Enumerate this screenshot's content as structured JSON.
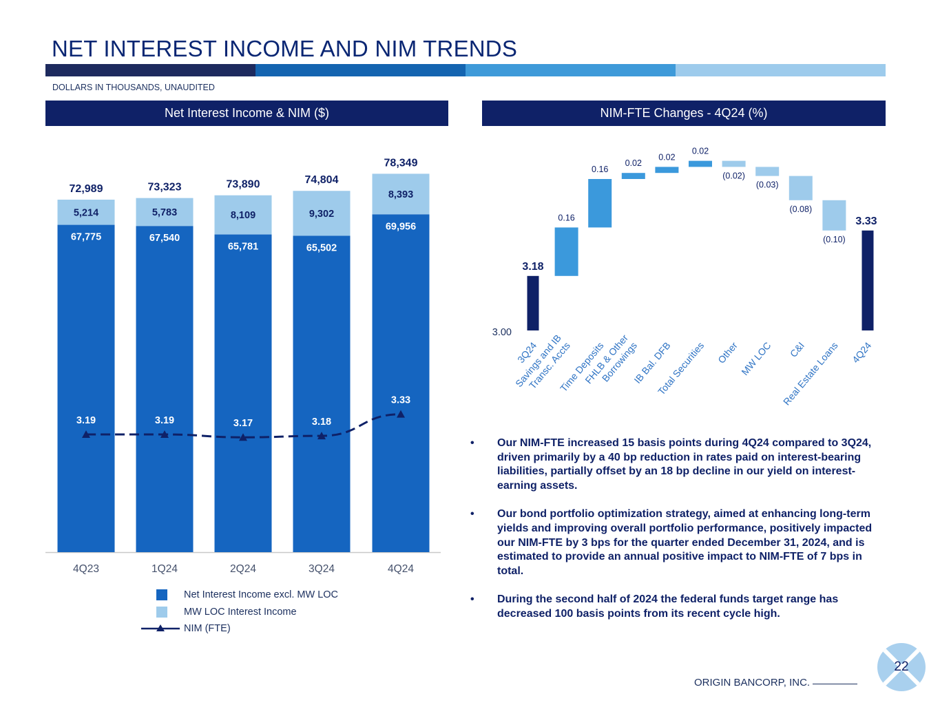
{
  "title": "NET INTEREST INCOME AND NIM TRENDS",
  "subtitle": "DOLLARS IN THOUSANDS, UNAUDITED",
  "colors": {
    "navy": "#0f2167",
    "stripe": [
      "#1d2a5e",
      "#1464b0",
      "#3e9ad9",
      "#9dcbec"
    ],
    "bar_base": "#1565c0",
    "bar_top": "#9ecbeb",
    "waterfall_up": "#3b99dc",
    "waterfall_down": "#9ecbeb",
    "waterfall_total": "#0f2167"
  },
  "left_panel": {
    "header": "Net Interest Income & NIM ($)"
  },
  "right_panel": {
    "header": "NIM-FTE Changes - 4Q24 (%)"
  },
  "legend": {
    "items": [
      {
        "label": "Net Interest Income excl. MW LOC",
        "icon": "square-swatch"
      },
      {
        "label": "MW LOC Interest Income",
        "icon": "square-swatch"
      },
      {
        "label": "NIM (FTE)",
        "icon": "line-triangle-marker"
      }
    ]
  },
  "chart_data": [
    {
      "type": "bar",
      "stacked": true,
      "title": "Net Interest Income & NIM ($)",
      "categories": [
        "4Q23",
        "1Q24",
        "2Q24",
        "3Q24",
        "4Q24"
      ],
      "series": [
        {
          "name": "Net Interest Income excl. MW LOC",
          "values": [
            67775,
            67540,
            65781,
            65502,
            69956
          ],
          "labels": [
            "67,775",
            "67,540",
            "65,781",
            "65,502",
            "69,956"
          ]
        },
        {
          "name": "MW LOC Interest Income",
          "values": [
            5214,
            5783,
            8109,
            9302,
            8393
          ],
          "labels": [
            "5,214",
            "5,783",
            "8,109",
            "9,302",
            "8,393"
          ]
        }
      ],
      "totals": [
        72989,
        73323,
        73890,
        74804,
        78349
      ],
      "total_labels": [
        "72,989",
        "73,323",
        "73,890",
        "74,804",
        "78,349"
      ],
      "line": {
        "name": "NIM (FTE)",
        "values": [
          3.19,
          3.19,
          3.17,
          3.18,
          3.33
        ],
        "labels": [
          "3.19",
          "3.19",
          "3.17",
          "3.18",
          "3.33"
        ],
        "marker": "triangle",
        "style": "dashed"
      },
      "ylim": [
        0,
        80000
      ]
    },
    {
      "type": "waterfall",
      "title": "NIM-FTE Changes - 4Q24 (%)",
      "categories": [
        "3Q24",
        "Savings and IB Transc. Accts",
        "Time Deposits",
        "FHLB & Other Borrowings",
        "IB Bal. DFB",
        "Total Securities",
        "Other",
        "MW LOC",
        "C&I",
        "Real Estate Loans",
        "4Q24"
      ],
      "category_lines": [
        [
          "3Q24"
        ],
        [
          "Savings and IB",
          "Transc. Accts"
        ],
        [
          "Time Deposits"
        ],
        [
          "FHLB & Other",
          "Borrowings"
        ],
        [
          "IB Bal. DFB"
        ],
        [
          "Total Securities"
        ],
        [
          "Other"
        ],
        [
          "MW LOC"
        ],
        [
          "C&I"
        ],
        [
          "Real Estate Loans"
        ],
        [
          "4Q24"
        ]
      ],
      "values": [
        3.18,
        0.16,
        0.16,
        0.02,
        0.02,
        0.02,
        -0.02,
        -0.03,
        -0.08,
        -0.1,
        3.33
      ],
      "labels": [
        "3.18",
        "0.16",
        "0.16",
        "0.02",
        "0.02",
        "0.02",
        "(0.02)",
        "(0.03)",
        "(0.08)",
        "(0.10)",
        "3.33"
      ],
      "kinds": [
        "total",
        "delta",
        "delta",
        "delta",
        "delta",
        "delta",
        "delta",
        "delta",
        "delta",
        "delta",
        "total"
      ],
      "axis_label": "3.00",
      "ylim": [
        3.0,
        3.54
      ]
    }
  ],
  "bullets": [
    "Our NIM-FTE increased 15 basis points during 4Q24 compared to 3Q24, driven primarily by a 40 bp reduction in rates paid on interest-bearing liabilities, partially offset by an 18 bp decline in our yield on interest-earning assets.",
    "Our bond portfolio optimization strategy, aimed at enhancing long-term yields and improving overall portfolio performance, positively impacted our NIM-FTE by 3 bps for the quarter ended December 31, 2024, and is estimated to provide an annual positive impact to NIM-FTE of 7 bps in total.",
    "During the second half of 2024 the federal funds target range has decreased 100 basis points from its recent cycle high."
  ],
  "bullet_symbol": "•",
  "footer": {
    "company": "ORIGIN BANCORP, INC.",
    "page": "22"
  }
}
